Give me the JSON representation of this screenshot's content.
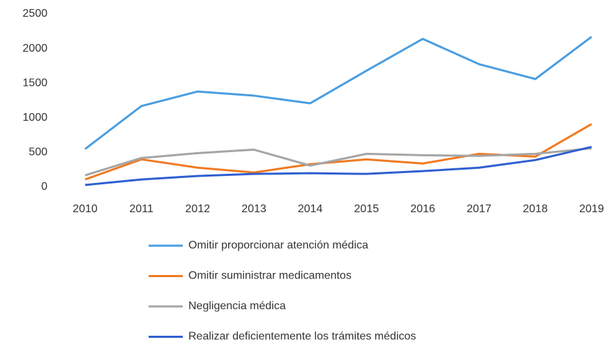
{
  "chart_data": {
    "type": "line",
    "x": [
      2010,
      2011,
      2012,
      2013,
      2014,
      2015,
      2016,
      2017,
      2018,
      2019
    ],
    "series": [
      {
        "name": "Omitir proporcionar atención médica",
        "color": "#4a9de0",
        "values": [
          550,
          1170,
          1380,
          1320,
          1210,
          1680,
          2140,
          1775,
          1560,
          2170
        ]
      },
      {
        "name": "Omitir suministrar medicamentos",
        "color": "#f07a22",
        "values": [
          110,
          400,
          280,
          210,
          330,
          400,
          340,
          480,
          440,
          910
        ]
      },
      {
        "name": "Negligencia médica",
        "color": "#a5a5a5",
        "values": [
          170,
          420,
          490,
          540,
          310,
          480,
          460,
          450,
          480,
          560
        ]
      },
      {
        "name": "Realizar deficientemente los trámites médicos",
        "color": "#2f5fd0",
        "values": [
          30,
          110,
          160,
          190,
          200,
          190,
          230,
          280,
          390,
          580
        ]
      }
    ],
    "xlim": [
      2010,
      2019
    ],
    "ylim": [
      0,
      2500
    ],
    "yticks": [
      0,
      500,
      1000,
      1500,
      2000,
      2500
    ],
    "grid": false,
    "legend": "bottom"
  }
}
